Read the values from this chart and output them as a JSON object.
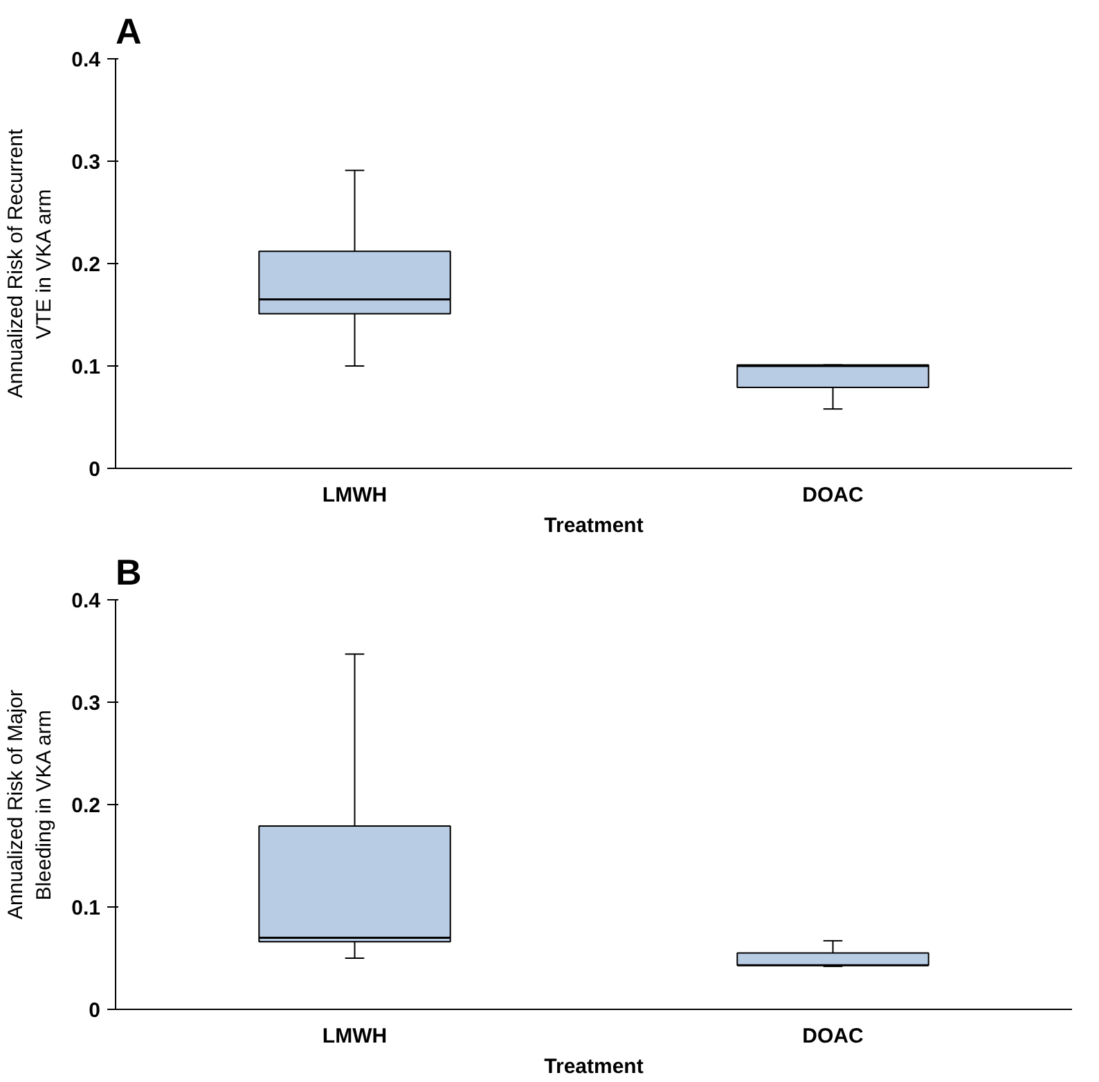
{
  "chart_data": [
    {
      "type": "box",
      "title": "A",
      "xlabel": "Treatment",
      "ylabel": "Annualized Risk of Recurrent\nVTE in VKA arm",
      "categories": [
        "LMWH",
        "DOAC"
      ],
      "color": "#b8cce4",
      "boxes": [
        {
          "low": 0.1,
          "q1": 0.151,
          "median": 0.165,
          "q3": 0.212,
          "high": 0.291
        },
        {
          "low": 0.058,
          "q1": 0.079,
          "median": 0.1,
          "q3": 0.101,
          "high": 0.101
        }
      ],
      "ylim": [
        0,
        0.4
      ],
      "yticks": [
        {
          "value": 0,
          "label": "0"
        },
        0.1,
        0.2,
        0.3,
        0.4
      ],
      "grid": false
    },
    {
      "type": "box",
      "title": "B",
      "xlabel": "Treatment",
      "ylabel": "Annualized Risk of Major\nBleeding in VKA arm",
      "categories": [
        "LMWH",
        "DOAC"
      ],
      "color": "#b8cce4",
      "boxes": [
        {
          "low": 0.05,
          "q1": 0.066,
          "median": 0.07,
          "q3": 0.179,
          "high": 0.347
        },
        {
          "low": 0.042,
          "q1": 0.043,
          "median": 0.043,
          "q3": 0.055,
          "high": 0.067
        }
      ],
      "ylim": [
        0,
        0.4
      ],
      "yticks": [
        {
          "value": 0,
          "label": "0"
        },
        0.1,
        0.2,
        0.3,
        0.4
      ],
      "grid": false
    }
  ]
}
